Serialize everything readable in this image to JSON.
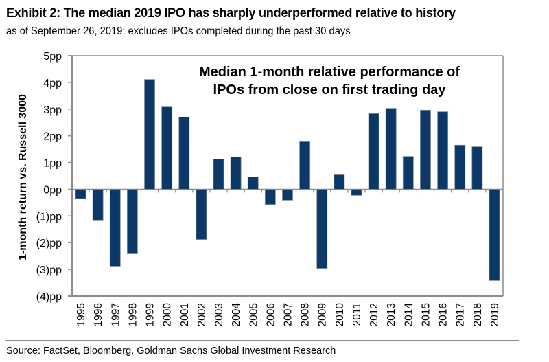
{
  "header": {
    "title": "Exhibit 2: The median 2019 IPO has sharply underperformed relative to history",
    "subtitle": "as of September 26, 2019; excludes IPOs completed during the past 30 days"
  },
  "footer": {
    "source": "Source: FactSet, Bloomberg, Goldman Sachs Global Investment Research"
  },
  "chart_data": {
    "type": "bar",
    "title": "Median 1-month relative performance of IPOs from close on first trading day",
    "annotation_lines": [
      "Median 1-month relative performance of",
      "IPOs from close on first trading day"
    ],
    "xlabel": "",
    "ylabel": "1-month return vs. Russell 3000",
    "ylim": [
      -4,
      5
    ],
    "yticks": [
      5,
      4,
      3,
      2,
      1,
      0,
      -1,
      -2,
      -3,
      -4
    ],
    "ytick_labels": [
      "5pp",
      "4pp",
      "3pp",
      "2pp",
      "1pp",
      "0pp",
      "(1)pp",
      "(2)pp",
      "(3)pp",
      "(4)pp"
    ],
    "grid": false,
    "legend": "none",
    "bar_color": "#0b3866",
    "categories": [
      "1995",
      "1996",
      "1997",
      "1998",
      "1999",
      "2000",
      "2001",
      "2002",
      "2003",
      "2004",
      "2005",
      "2006",
      "2007",
      "2008",
      "2009",
      "2010",
      "2011",
      "2012",
      "2013",
      "2014",
      "2015",
      "2016",
      "2017",
      "2018",
      "2019"
    ],
    "values": [
      -0.35,
      -1.18,
      -2.88,
      -2.42,
      4.11,
      3.08,
      2.7,
      -1.88,
      1.13,
      1.21,
      0.46,
      -0.57,
      -0.41,
      1.8,
      -2.96,
      0.54,
      -0.23,
      2.83,
      3.03,
      1.23,
      2.96,
      2.9,
      1.65,
      1.59,
      -3.42
    ]
  }
}
